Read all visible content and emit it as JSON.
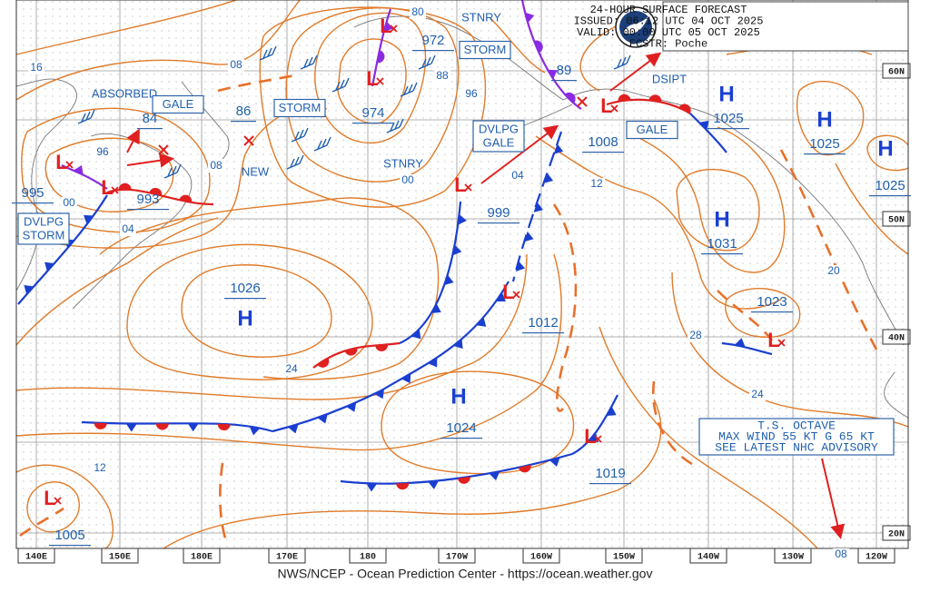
{
  "header": {
    "lines": [
      "24-HOUR SURFACE FORECAST",
      "ISSUED: 06:12 UTC 04 OCT 2025",
      "VALID:  00:00 UTC 05 OCT 2025",
      "FCSTR:  Poche"
    ]
  },
  "map": {
    "highs": [
      "H",
      "H",
      "H",
      "H",
      "H",
      "H"
    ],
    "lows": [
      "L",
      "L",
      "L",
      "L",
      "L",
      "L",
      "L",
      "L",
      "L",
      "L"
    ],
    "pressures": [
      "1025",
      "1025",
      "1025",
      "1031",
      "1026",
      "1024",
      "972",
      "974",
      "995",
      "993",
      "999",
      "1012",
      "1008",
      "1019",
      "1023",
      "1005",
      "89",
      "84",
      "86"
    ],
    "isobar_labels": [
      "16",
      "08",
      "80",
      "88",
      "96",
      "96",
      "08",
      "00",
      "04",
      "00",
      "04",
      "12",
      "20",
      "28",
      "24",
      "24",
      "12",
      "08"
    ],
    "notes": [
      "ABSORBED",
      "NEW",
      "STNRY",
      "STNRY",
      "DSIPT"
    ],
    "warnings": [
      [
        "GALE"
      ],
      [
        "STORM"
      ],
      [
        "STORM"
      ],
      [
        "DVLPG",
        "GALE"
      ],
      [
        "GALE"
      ],
      [
        "DVLPG",
        "STORM"
      ]
    ],
    "advisory": [
      "T.S. OCTAVE",
      "MAX WIND 55 KT G 65 KT",
      "SEE LATEST NHC ADVISORY"
    ],
    "longitudes": [
      "140E",
      "150E",
      "180E",
      "170E",
      "180",
      "170W",
      "160W",
      "150W",
      "140W",
      "130W",
      "120W"
    ],
    "latitudes": [
      "60N",
      "50N",
      "40N",
      "20N"
    ]
  },
  "footer": "NWS/NCEP - Ocean Prediction Center - https://ocean.weather.gov"
}
